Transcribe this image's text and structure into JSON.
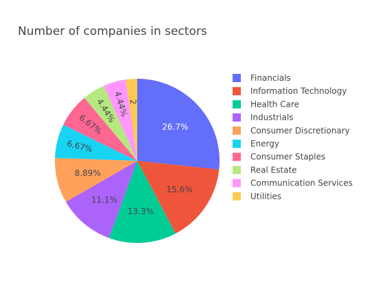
{
  "chart_data": {
    "type": "pie",
    "title": "Number of companies in sectors",
    "legend_placement": "right",
    "slices": [
      {
        "label": "Financials",
        "value": 26.7,
        "text": "26.7%",
        "color": "#636efa",
        "text_color": "#ffffff"
      },
      {
        "label": "Information Technology",
        "value": 15.6,
        "text": "15.6%",
        "color": "#ef553b",
        "text_color": "#444444"
      },
      {
        "label": "Health Care",
        "value": 13.3,
        "text": "13.3%",
        "color": "#00cc96",
        "text_color": "#444444"
      },
      {
        "label": "Industrials",
        "value": 11.1,
        "text": "11.1%",
        "color": "#ab63fa",
        "text_color": "#444444"
      },
      {
        "label": "Consumer Discretionary",
        "value": 8.89,
        "text": "8.89%",
        "color": "#ffa15a",
        "text_color": "#444444"
      },
      {
        "label": "Energy",
        "value": 6.67,
        "text": "6.67%",
        "color": "#19d3f3",
        "text_color": "#444444"
      },
      {
        "label": "Consumer Staples",
        "value": 6.67,
        "text": "6.67%",
        "color": "#ff6692",
        "text_color": "#444444"
      },
      {
        "label": "Real Estate",
        "value": 4.44,
        "text": "4.44%",
        "color": "#b6e880",
        "text_color": "#444444"
      },
      {
        "label": "Communication Services",
        "value": 4.44,
        "text": "4.44%",
        "color": "#ff97ff",
        "text_color": "#444444"
      },
      {
        "label": "Utilities",
        "value": 2.22,
        "text": "2",
        "color": "#fecb52",
        "text_color": "#444444"
      }
    ]
  }
}
